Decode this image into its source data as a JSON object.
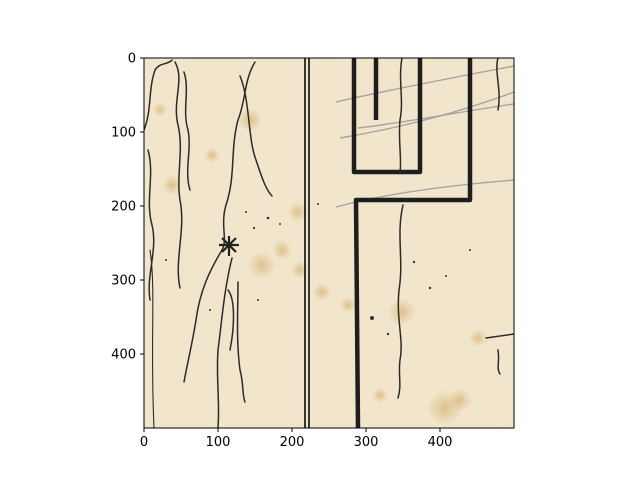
{
  "chart_data": {
    "type": "image",
    "title": "",
    "xlabel": "",
    "ylabel": "",
    "xlim": [
      0,
      500
    ],
    "ylim": [
      500,
      0
    ],
    "xticks": [
      0,
      100,
      200,
      300,
      400
    ],
    "yticks": [
      0,
      100,
      200,
      300,
      400
    ],
    "grid": false,
    "colors": {
      "paper": "#f1e6cc",
      "ink": "#222222",
      "stain": "#e3c28c",
      "pencil": "#9a9a9a"
    },
    "content_description": "scanned aged paper with hand-drawn ink map lines"
  }
}
